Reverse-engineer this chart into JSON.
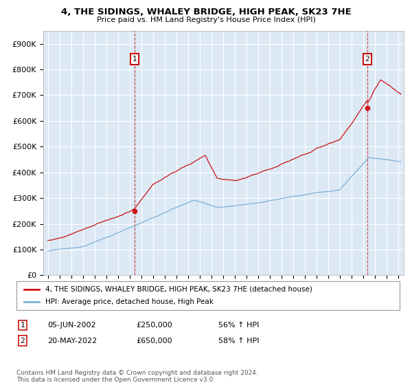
{
  "title": "4, THE SIDINGS, WHALEY BRIDGE, HIGH PEAK, SK23 7HE",
  "subtitle": "Price paid vs. HM Land Registry's House Price Index (HPI)",
  "ylabel_ticks": [
    "£0",
    "£100K",
    "£200K",
    "£300K",
    "£400K",
    "£500K",
    "£600K",
    "£700K",
    "£800K",
    "£900K"
  ],
  "ylim": [
    0,
    950000
  ],
  "xlim_start": 1994.6,
  "xlim_end": 2025.5,
  "hpi_color": "#7bafd4",
  "price_color": "#cc1111",
  "background_color": "#ffffff",
  "plot_bg_color": "#dce9f5",
  "grid_color": "#ffffff",
  "legend_label_price": "4, THE SIDINGS, WHALEY BRIDGE, HIGH PEAK, SK23 7HE (detached house)",
  "legend_label_hpi": "HPI: Average price, detached house, High Peak",
  "transaction1_date": "05-JUN-2002",
  "transaction1_price": "£250,000",
  "transaction1_hpi": "56% ↑ HPI",
  "transaction1_year": 2002.43,
  "transaction1_value": 250000,
  "transaction2_date": "20-MAY-2022",
  "transaction2_price": "£650,000",
  "transaction2_hpi": "58% ↑ HPI",
  "transaction2_year": 2022.38,
  "transaction2_value": 650000,
  "footer": "Contains HM Land Registry data © Crown copyright and database right 2024.\nThis data is licensed under the Open Government Licence v3.0."
}
